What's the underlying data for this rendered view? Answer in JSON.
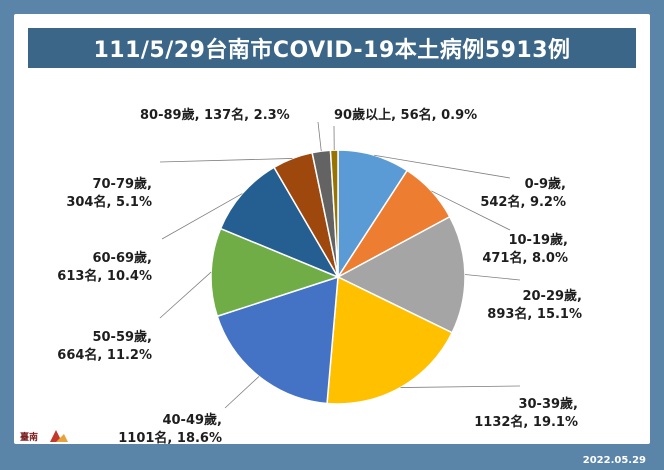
{
  "header": {
    "title": "111/5/29台南市COVID-19本土病例5913例"
  },
  "footer": {
    "date": "2022.05.29"
  },
  "chart_data": {
    "type": "pie",
    "title": "111/5/29台南市COVID-19本土病例5913例",
    "total": 5913,
    "slices": [
      {
        "label_line1": "0-9歲,",
        "label_line2": "542名, 9.2%",
        "value": 542,
        "percent": 9.2,
        "color": "#5b9bd5"
      },
      {
        "label_line1": "10-19歲,",
        "label_line2": "471名, 8.0%",
        "value": 471,
        "percent": 8.0,
        "color": "#ed7d31"
      },
      {
        "label_line1": "20-29歲,",
        "label_line2": "893名, 15.1%",
        "value": 893,
        "percent": 15.1,
        "color": "#a5a5a5"
      },
      {
        "label_line1": "30-39歲,",
        "label_line2": "1132名, 19.1%",
        "value": 1132,
        "percent": 19.1,
        "color": "#ffc000"
      },
      {
        "label_line1": "40-49歲,",
        "label_line2": "1101名, 18.6%",
        "value": 1101,
        "percent": 18.6,
        "color": "#4472c4"
      },
      {
        "label_line1": "50-59歲,",
        "label_line2": "664名, 11.2%",
        "value": 664,
        "percent": 11.2,
        "color": "#70ad47"
      },
      {
        "label_line1": "60-69歲,",
        "label_line2": "613名, 10.4%",
        "value": 613,
        "percent": 10.4,
        "color": "#255e91"
      },
      {
        "label_line1": "70-79歲,",
        "label_line2": "304名, 5.1%",
        "value": 304,
        "percent": 5.1,
        "color": "#9e480e"
      },
      {
        "label_line1": "80-89歲, 137名, 2.3%",
        "label_line2": "",
        "value": 137,
        "percent": 2.3,
        "color": "#636363"
      },
      {
        "label_line1": "90歲以上, 56名, 0.9%",
        "label_line2": "",
        "value": 56,
        "percent": 0.9,
        "color": "#997300"
      }
    ]
  }
}
